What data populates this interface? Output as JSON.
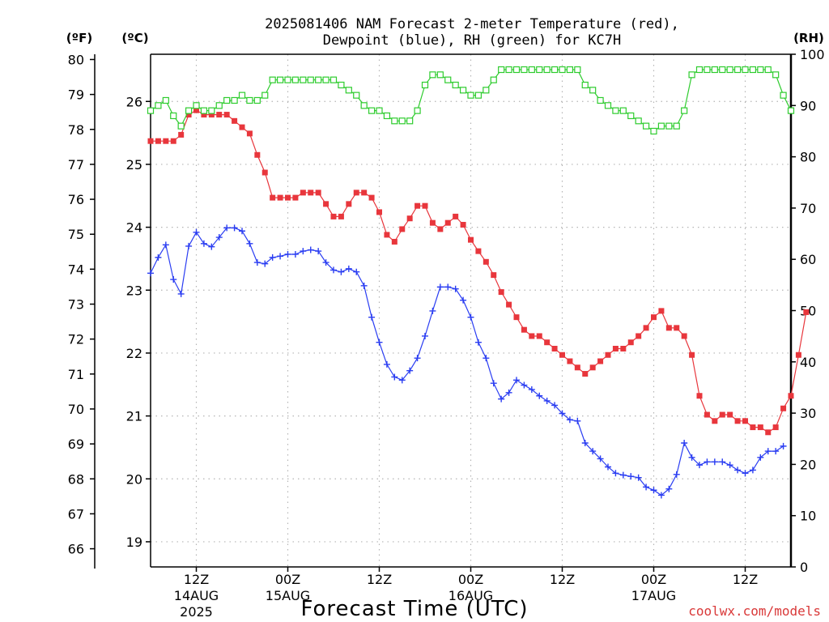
{
  "chart_data": {
    "type": "line",
    "title_lines": [
      "2025081406 NAM Forecast 2-meter Temperature (red),",
      "Dewpoint (blue), RH (green) for KC7H"
    ],
    "xlabel": "Forecast Time (UTC)",
    "credit": "coolwx.com/models",
    "units": {
      "fahrenheit": "(ºF)",
      "celsius": "(ºC)",
      "rh": "(RH)"
    },
    "x_ticks": [
      {
        "hour": 6,
        "time": "12Z",
        "date": "14AUG",
        "year": "2025"
      },
      {
        "hour": 18,
        "time": "00Z",
        "date": "15AUG",
        "year": ""
      },
      {
        "hour": 30,
        "time": "12Z",
        "date": "",
        "year": ""
      },
      {
        "hour": 42,
        "time": "00Z",
        "date": "16AUG",
        "year": ""
      },
      {
        "hour": 54,
        "time": "12Z",
        "date": "",
        "year": ""
      },
      {
        "hour": 66,
        "time": "00Z",
        "date": "17AUG",
        "year": ""
      },
      {
        "hour": 78,
        "time": "12Z",
        "date": "",
        "year": ""
      }
    ],
    "x_range_hours": [
      0,
      84
    ],
    "celsius_ticks": [
      19,
      20,
      21,
      22,
      23,
      24,
      25,
      26
    ],
    "celsius_range": [
      18.6,
      26.75
    ],
    "fahrenheit_ticks": [
      66,
      67,
      68,
      69,
      70,
      71,
      72,
      73,
      74,
      75,
      76,
      77,
      78,
      79,
      80
    ],
    "rh_ticks": [
      0,
      10,
      20,
      30,
      40,
      50,
      60,
      70,
      80,
      90,
      100
    ],
    "rh_range": [
      0,
      100
    ],
    "grid": true,
    "colors": {
      "temperature": "#e8363c",
      "dewpoint": "#2a3df2",
      "rh": "#2ecc2e",
      "credit": "#d93838"
    },
    "series": [
      {
        "name": "Temperature (red)",
        "unit": "C",
        "marker": "filled-square",
        "values": [
          25.37,
          25.37,
          25.37,
          25.37,
          25.47,
          25.79,
          25.86,
          25.79,
          25.79,
          25.79,
          25.79,
          25.69,
          25.59,
          25.49,
          25.15,
          24.87,
          24.47,
          24.47,
          24.47,
          24.47,
          24.55,
          24.55,
          24.55,
          24.37,
          24.17,
          24.17,
          24.37,
          24.55,
          24.55,
          24.47,
          24.24,
          23.88,
          23.77,
          23.97,
          24.14,
          24.34,
          24.34,
          24.07,
          23.97,
          24.07,
          24.17,
          24.04,
          23.8,
          23.62,
          23.45,
          23.24,
          22.97,
          22.77,
          22.57,
          22.37,
          22.27,
          22.27,
          22.17,
          22.07,
          21.97,
          21.87,
          21.77,
          21.67,
          21.77,
          21.87,
          21.97,
          22.07,
          22.07,
          22.17,
          22.27,
          22.4,
          22.57,
          22.67,
          22.4,
          22.4,
          22.27,
          21.97,
          21.32,
          21.02,
          20.92,
          21.02,
          21.02,
          20.92,
          20.92,
          20.82,
          20.82,
          20.74,
          20.82,
          21.12,
          21.32,
          21.97,
          22.65
        ]
      },
      {
        "name": "Dewpoint (blue)",
        "unit": "C",
        "marker": "plus",
        "values": [
          23.27,
          23.52,
          23.72,
          23.17,
          22.94,
          23.7,
          23.92,
          23.74,
          23.69,
          23.84,
          23.99,
          23.99,
          23.94,
          23.74,
          23.44,
          23.42,
          23.52,
          23.54,
          23.57,
          23.57,
          23.62,
          23.64,
          23.62,
          23.44,
          23.32,
          23.29,
          23.34,
          23.29,
          23.07,
          22.57,
          22.17,
          21.82,
          21.62,
          21.57,
          21.72,
          21.92,
          22.27,
          22.67,
          23.05,
          23.05,
          23.02,
          22.84,
          22.57,
          22.17,
          21.92,
          21.52,
          21.27,
          21.37,
          21.57,
          21.49,
          21.42,
          21.32,
          21.24,
          21.17,
          21.04,
          20.94,
          20.92,
          20.57,
          20.44,
          20.32,
          20.19,
          20.09,
          20.06,
          20.04,
          20.02,
          19.87,
          19.82,
          19.74,
          19.84,
          20.07,
          20.57,
          20.34,
          20.22,
          20.27,
          20.27,
          20.27,
          20.22,
          20.14,
          20.09,
          20.14,
          20.34,
          20.44,
          20.44,
          20.52
        ]
      },
      {
        "name": "RH (green)",
        "unit": "%",
        "marker": "open-square",
        "values": [
          89,
          90,
          91,
          88,
          86,
          89,
          90,
          89,
          89,
          90,
          91,
          91,
          92,
          91,
          91,
          92,
          95,
          95,
          95,
          95,
          95,
          95,
          95,
          95,
          95,
          94,
          93,
          92,
          90,
          89,
          89,
          88,
          87,
          87,
          87,
          89,
          94,
          96,
          96,
          95,
          94,
          93,
          92,
          92,
          93,
          95,
          97,
          97,
          97,
          97,
          97,
          97,
          97,
          97,
          97,
          97,
          97,
          94,
          93,
          91,
          90,
          89,
          89,
          88,
          87,
          86,
          85,
          86,
          86,
          86,
          89,
          96,
          97,
          97,
          97,
          97,
          97,
          97,
          97,
          97,
          97,
          97,
          96,
          92,
          89
        ]
      }
    ]
  }
}
